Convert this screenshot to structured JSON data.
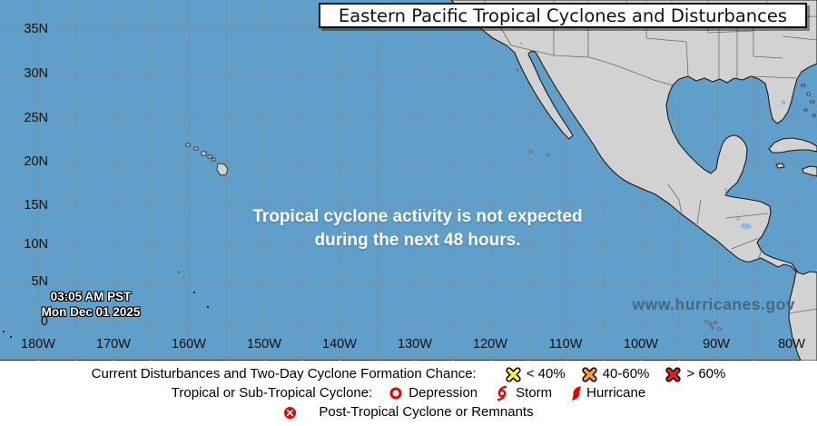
{
  "title": "Eastern Pacific Tropical Cyclones and Disturbances",
  "map": {
    "message": {
      "line1": "Tropical cyclone activity is not expected",
      "line2": "during the next 48 hours."
    },
    "timestamp": {
      "line1": "03:05 AM PST",
      "line2": "Mon Dec 01 2025"
    },
    "watermark": "www.hurricanes.gov",
    "lat_labels": [
      "35N",
      "30N",
      "25N",
      "20N",
      "15N",
      "10N",
      "5N",
      "0"
    ],
    "lon_labels": [
      "180W",
      "170W",
      "160W",
      "150W",
      "140W",
      "130W",
      "120W",
      "110W",
      "100W",
      "90W",
      "80W"
    ]
  },
  "legend": {
    "formation_chance": {
      "label": "Current Disturbances and Two-Day Cyclone Formation Chance:",
      "items": [
        {
          "icon": "x-mark-yellow-icon",
          "label": "< 40%",
          "color": "#FFF133"
        },
        {
          "icon": "x-mark-orange-icon",
          "label": "40-60%",
          "color": "#FF9E21"
        },
        {
          "icon": "x-mark-red-icon",
          "label": "> 60%",
          "color": "#E81E25"
        }
      ]
    },
    "cyclone": {
      "label": "Tropical or Sub-Tropical Cyclone:",
      "items": [
        {
          "icon": "depression-icon",
          "label": "Depression"
        },
        {
          "icon": "storm-icon",
          "label": "Storm"
        },
        {
          "icon": "hurricane-icon",
          "label": "Hurricane"
        }
      ]
    },
    "post_tropical": {
      "icon": "post-tropical-icon",
      "label": "Post-Tropical Cyclone or Remnants"
    }
  },
  "colors": {
    "ocean": "#5F9FCA",
    "land": "#D2D2D2",
    "grid": "#7E919B",
    "coastline": "#1A1A1A",
    "lake": "#8FBBDC",
    "cyclone_red": "#EE0000",
    "watermark_text": "#47697D"
  }
}
